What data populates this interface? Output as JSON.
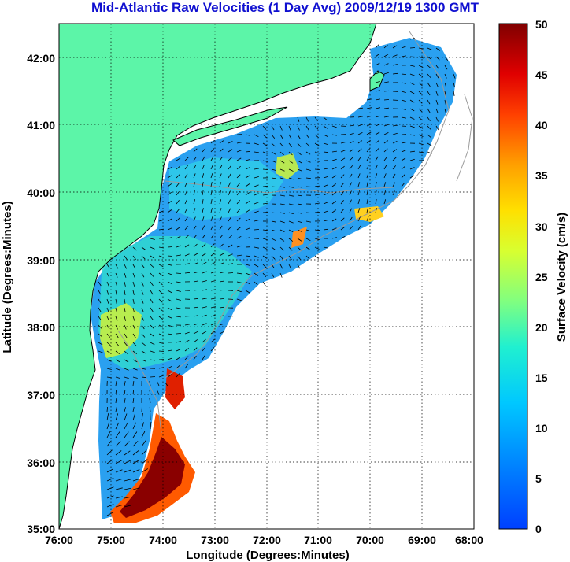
{
  "title": "Mid-Atlantic Raw Velocities (1 Day Avg) 2009/12/19 1300 GMT",
  "x_axis": {
    "label": "Longitude (Degrees:Minutes)",
    "ticks": [
      "76:00",
      "75:00",
      "74:00",
      "73:00",
      "72:00",
      "71:00",
      "70:00",
      "69:00",
      "68:00"
    ]
  },
  "y_axis": {
    "label": "Latitude (Degrees:Minutes)",
    "ticks": [
      "42:00",
      "41:00",
      "40:00",
      "39:00",
      "38:00",
      "37:00",
      "36:00",
      "35:00"
    ]
  },
  "colorbar": {
    "label": "Surface Velocity (cm/s)",
    "ticks": [
      "50",
      "45",
      "40",
      "35",
      "30",
      "25",
      "20",
      "15",
      "10",
      "5",
      "0"
    ],
    "range": [
      0,
      50
    ]
  },
  "colors": {
    "land": "#5cf5a8",
    "title": "#1010d0",
    "contour": "#9a9a9a",
    "grid": "#000000"
  }
}
